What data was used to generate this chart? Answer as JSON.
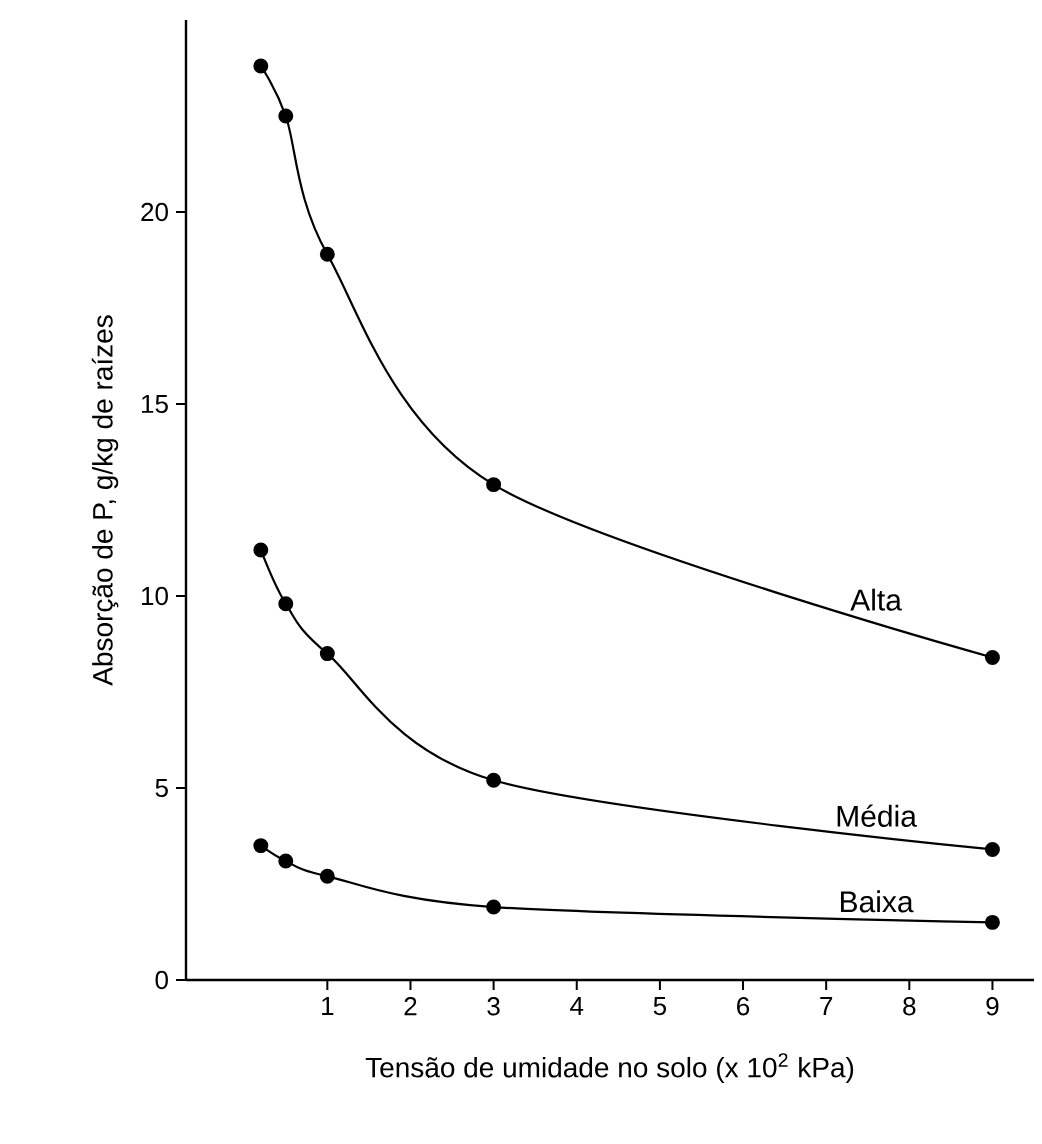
{
  "chart_data": {
    "type": "line",
    "xlabel": "Tensão de umidade no solo (x 10$^{2}$ kPa)",
    "ylabel": "Absorção de P, g/kg de raízes",
    "x": [
      0.2,
      0.5,
      1,
      3,
      9
    ],
    "series": [
      {
        "name": "Alta",
        "color": "#000000",
        "values": [
          23.8,
          22.5,
          18.9,
          12.9,
          8.4
        ]
      },
      {
        "name": "Média",
        "color": "#000000",
        "values": [
          11.2,
          9.8,
          8.5,
          5.2,
          3.4
        ]
      },
      {
        "name": "Baixa",
        "color": "#000000",
        "values": [
          3.5,
          3.1,
          2.7,
          1.9,
          1.5
        ]
      }
    ],
    "xlim": [
      -0.7,
      9.5
    ],
    "ylim": [
      0,
      25
    ],
    "xticks": [
      1,
      2,
      3,
      4,
      5,
      6,
      7,
      8,
      9
    ],
    "yticks": [
      0,
      5,
      10,
      15,
      20
    ],
    "marker": "circle",
    "line_style": "solid",
    "grid": false,
    "legend": false
  }
}
